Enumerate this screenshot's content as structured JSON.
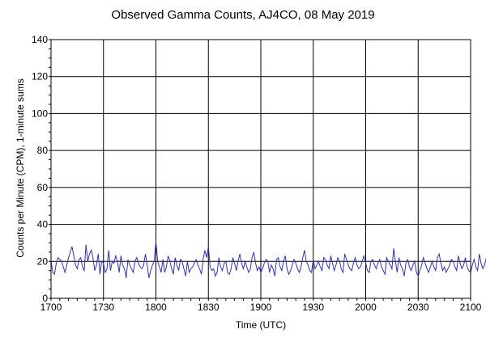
{
  "chart_data": {
    "type": "line",
    "title": "Observed Gamma Counts, AJ4CO, 08 May 2019",
    "xlabel": "Time (UTC)",
    "ylabel": "Counts per Minute (CPM), 1-minute sums",
    "x_tick_labels": [
      "1700",
      "1730",
      "1800",
      "1830",
      "1900",
      "1930",
      "2000",
      "2030",
      "2100"
    ],
    "y_ticks": [
      0,
      20,
      40,
      60,
      80,
      100,
      120,
      140
    ],
    "ylim": [
      0,
      140
    ],
    "xlim": [
      "17:00",
      "21:00"
    ],
    "grid": true,
    "series_color": "#3333aa",
    "x_start": "17:00",
    "x_step": "1 minute",
    "series": [
      {
        "values": [
          20,
          14,
          13,
          19,
          22,
          21,
          20,
          17,
          14,
          18,
          22,
          25,
          28,
          23,
          18,
          16,
          21,
          22,
          17,
          15,
          29,
          20,
          24,
          26,
          22,
          15,
          18,
          24,
          13,
          20,
          19,
          14,
          16,
          26,
          15,
          20,
          19,
          23,
          20,
          14,
          23,
          18,
          16,
          11,
          21,
          18,
          16,
          14,
          20,
          22,
          19,
          17,
          16,
          18,
          24,
          18,
          11,
          15,
          18,
          20,
          31,
          20,
          17,
          14,
          21,
          14,
          17,
          23,
          20,
          16,
          13,
          22,
          18,
          15,
          21,
          20,
          16,
          12,
          20,
          14,
          16,
          17,
          19,
          21,
          18,
          16,
          13,
          21,
          26,
          22,
          28,
          17,
          15,
          16,
          12,
          14,
          22,
          17,
          15,
          19,
          20,
          14,
          13,
          16,
          22,
          19,
          15,
          20,
          24,
          19,
          16,
          20,
          17,
          14,
          16,
          22,
          25,
          19,
          15,
          17,
          14,
          16,
          19,
          21,
          20,
          14,
          18,
          16,
          12,
          21,
          22,
          17,
          15,
          20,
          23,
          16,
          13,
          15,
          18,
          21,
          19,
          16,
          14,
          17,
          22,
          26,
          20,
          18,
          15,
          14,
          21,
          16,
          18,
          20,
          17,
          15,
          22,
          21,
          18,
          16,
          23,
          19,
          15,
          18,
          22,
          20,
          16,
          14,
          24,
          21,
          18,
          16,
          15,
          19,
          22,
          18,
          16,
          17,
          20,
          23,
          19,
          15,
          14,
          20,
          21,
          18,
          16,
          19,
          21,
          17,
          15,
          13,
          22,
          20,
          18,
          16,
          27,
          20,
          14,
          22,
          18,
          16,
          12,
          19,
          21,
          17,
          15,
          18,
          20,
          14,
          12,
          15,
          18,
          22,
          19,
          16,
          14,
          17,
          20,
          17,
          15,
          22,
          24,
          19,
          15,
          17,
          14,
          16,
          18,
          21,
          20,
          17,
          15,
          23,
          19,
          16,
          18,
          22,
          17,
          15,
          14,
          18,
          21,
          17,
          15,
          24,
          19,
          16,
          18,
          22,
          20,
          18,
          17,
          16,
          19,
          17,
          20,
          16,
          18,
          22
        ]
      }
    ]
  }
}
